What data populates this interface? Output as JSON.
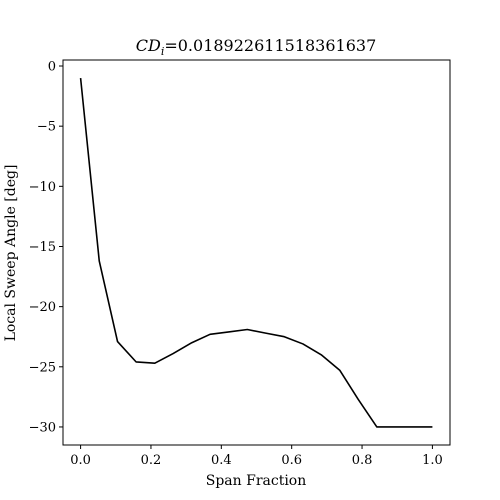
{
  "chart_data": {
    "type": "line",
    "title_prefix": "CD",
    "title_subscript": "i",
    "title_value": "=0.018922611518361637",
    "xlabel": "Span Fraction",
    "ylabel": "Local Sweep Angle [deg]",
    "xlim": [
      -0.05,
      1.05
    ],
    "ylim": [
      -31.5,
      0.5
    ],
    "xticks": [
      0.0,
      0.2,
      0.4,
      0.6,
      0.8,
      1.0
    ],
    "xtick_labels": [
      "0.0",
      "0.2",
      "0.4",
      "0.6",
      "0.8",
      "1.0"
    ],
    "yticks": [
      0,
      -5,
      -10,
      -15,
      -20,
      -25,
      -30
    ],
    "ytick_labels": [
      "0",
      "−5",
      "−10",
      "−15",
      "−20",
      "−25",
      "−30"
    ],
    "grid": false,
    "line_color": "#000000",
    "series": [
      {
        "x": [
          0.0,
          0.053,
          0.105,
          0.158,
          0.211,
          0.263,
          0.316,
          0.368,
          0.421,
          0.474,
          0.526,
          0.579,
          0.632,
          0.684,
          0.737,
          0.789,
          0.842,
          0.895,
          0.947,
          1.0
        ],
        "y": [
          -1.0,
          -16.2,
          -22.9,
          -24.6,
          -24.7,
          -23.9,
          -23.0,
          -22.3,
          -22.1,
          -21.9,
          -22.2,
          -22.5,
          -23.1,
          -24.0,
          -25.3,
          -27.7,
          -30.0,
          -30.0,
          -30.0,
          -30.0
        ]
      }
    ]
  }
}
